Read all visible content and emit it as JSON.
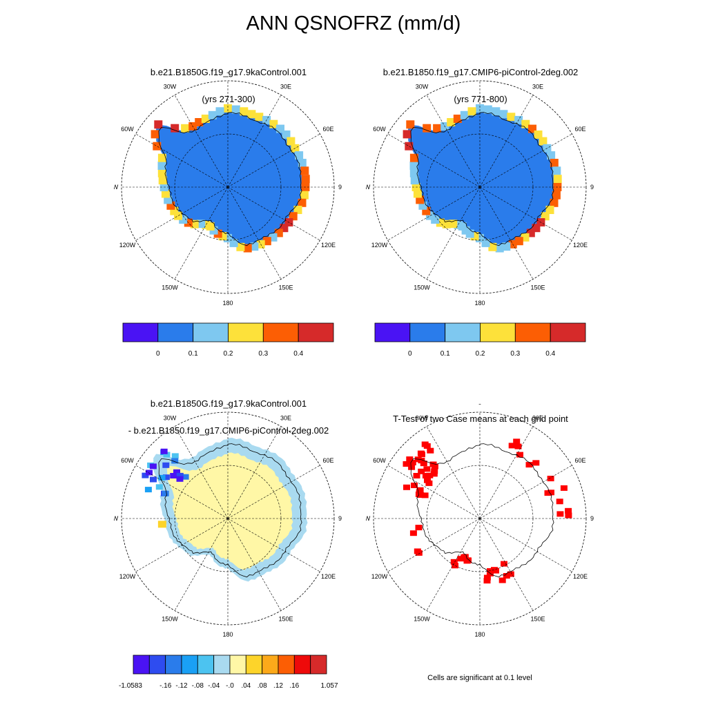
{
  "title": "ANN QSNOFRZ (mm/d)",
  "panels": [
    {
      "id": "case1",
      "title1": "b.e21.B1850G.f19_g17.9kaControl.001",
      "title2": "(yrs 271-300)"
    },
    {
      "id": "case2",
      "title1": "b.e21.B1850.f19_g17.CMIP6-piControl-2deg.002",
      "title2": "(yrs 771-800)"
    },
    {
      "id": "diff",
      "title1": "b.e21.B1850G.f19_g17.9kaControl.001",
      "title2": "- b.e21.B1850.f19_g17.CMIP6-piControl-2deg.002"
    },
    {
      "id": "ttest",
      "title1": "T-Test of two Case means at each grid point",
      "title2": ""
    }
  ],
  "map_labels": {
    "top": "0",
    "top_right": "30E",
    "right_upper": "60E",
    "right": "90E",
    "right_lower": "120E",
    "bottom_right": "150E",
    "bottom": "180",
    "bottom_left": "150W",
    "left_lower": "120W",
    "left": "90W",
    "left_upper": "60W",
    "top_left": "30W"
  },
  "colorbar_case": {
    "colors": [
      "#4a13f4",
      "#2a7ceb",
      "#7ec8f0",
      "#fde13a",
      "#fc5e04",
      "#d62a2a"
    ],
    "labels": [
      "0",
      "0.1",
      "0.2",
      "0.3",
      "0.4"
    ]
  },
  "colorbar_diff": {
    "colors": [
      "#4a13f4",
      "#2e4cf0",
      "#2a7ceb",
      "#1aa0f5",
      "#4cc3f0",
      "#a9daf0",
      "#fff7a6",
      "#fdd42a",
      "#fca91a",
      "#fc5e04",
      "#ee0a0a",
      "#d62a2a"
    ],
    "labels": [
      "-1.0583",
      "-.16",
      "-.12",
      "-.08",
      "-.04",
      "-.0",
      ".04",
      ".08",
      ".12",
      ".16",
      "1.057"
    ]
  },
  "ttest_note": "Cells are significant at 0.1 level",
  "chart_data": [
    {
      "type": "heatmap",
      "title": "b.e21.B1850G.f19_g17.9kaControl.001 (yrs 271-300)",
      "description": "South polar stereographic map of annual QSNOFRZ",
      "levels": [
        0,
        0.1,
        0.2,
        0.3,
        0.4
      ],
      "dominant_value_range": [
        0,
        0.1
      ],
      "coastal_max_range": [
        0.4,
        0.5
      ]
    },
    {
      "type": "heatmap",
      "title": "b.e21.B1850.f19_g17.CMIP6-piControl-2deg.002 (yrs 771-800)",
      "levels": [
        0,
        0.1,
        0.2,
        0.3,
        0.4
      ],
      "dominant_value_range": [
        0,
        0.1
      ],
      "coastal_max_range": [
        0.4,
        0.5
      ]
    },
    {
      "type": "heatmap",
      "title": "b.e21.B1850G.f19_g17.9kaControl.001 - b.e21.B1850.f19_g17.CMIP6-piControl-2deg.002",
      "levels": [
        -1.0583,
        -0.16,
        -0.12,
        -0.08,
        -0.04,
        0,
        0.04,
        0.08,
        0.12,
        0.16,
        1.057
      ],
      "dominant_value_range": [
        0,
        0.04
      ]
    },
    {
      "type": "heatmap",
      "title": "T-Test of two Case means at each grid point",
      "significance_level": 0.1
    }
  ]
}
